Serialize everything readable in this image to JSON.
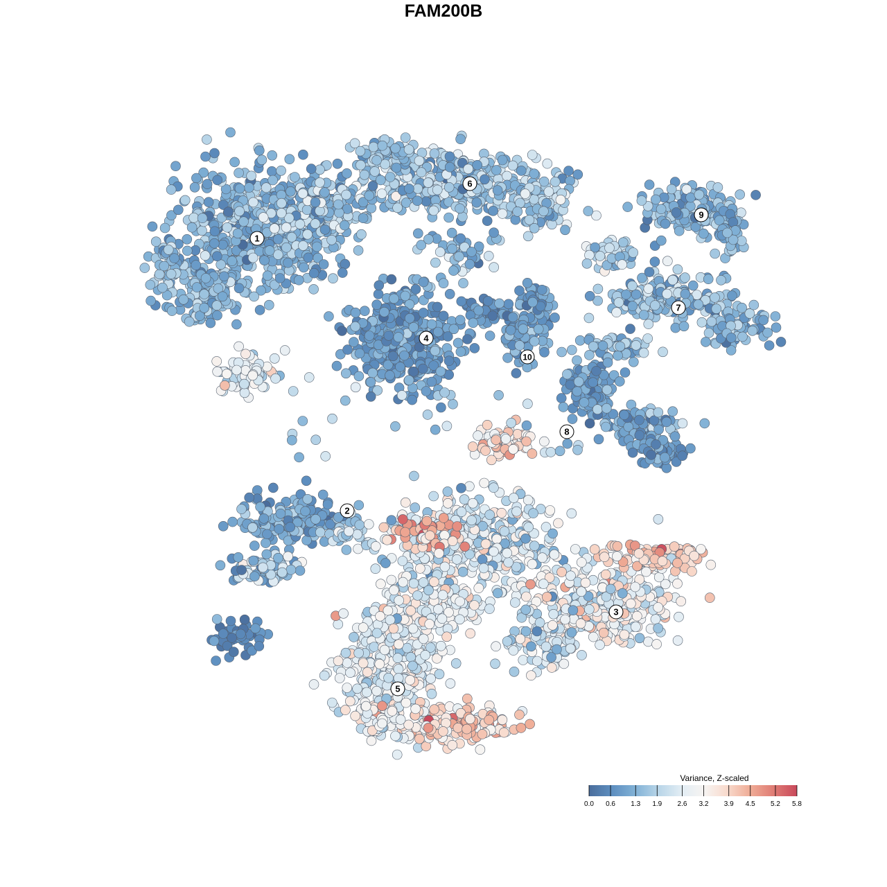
{
  "chart_data": {
    "type": "scatter",
    "title": "FAM200B",
    "xlabel": "",
    "ylabel": "",
    "grid": false,
    "color_scale": {
      "title": "Variance, Z-scaled",
      "min": 0.0,
      "max": 5.8,
      "ticks": [
        "0.0",
        "0.6",
        "1.3",
        "1.9",
        "2.6",
        "3.2",
        "3.9",
        "4.5",
        "5.2",
        "5.8"
      ],
      "colors": [
        "#4a6d9c",
        "#5e8fc0",
        "#81b1d6",
        "#b8d5e8",
        "#e2edf4",
        "#f7f4f2",
        "#f8d9cb",
        "#efab95",
        "#df7b74",
        "#c9495b"
      ]
    },
    "legend_position": "bottom-right",
    "clusters": [
      {
        "label": "1",
        "mean_value": 1.2
      },
      {
        "label": "2",
        "mean_value": 1.0
      },
      {
        "label": "3",
        "mean_value": 3.4
      },
      {
        "label": "4",
        "mean_value": 0.8
      },
      {
        "label": "5",
        "mean_value": 3.1
      },
      {
        "label": "6",
        "mean_value": 1.6
      },
      {
        "label": "7",
        "mean_value": 1.4
      },
      {
        "label": "8",
        "mean_value": 2.8
      },
      {
        "label": "9",
        "mean_value": 1.2
      },
      {
        "label": "10",
        "mean_value": 0.9
      }
    ]
  }
}
